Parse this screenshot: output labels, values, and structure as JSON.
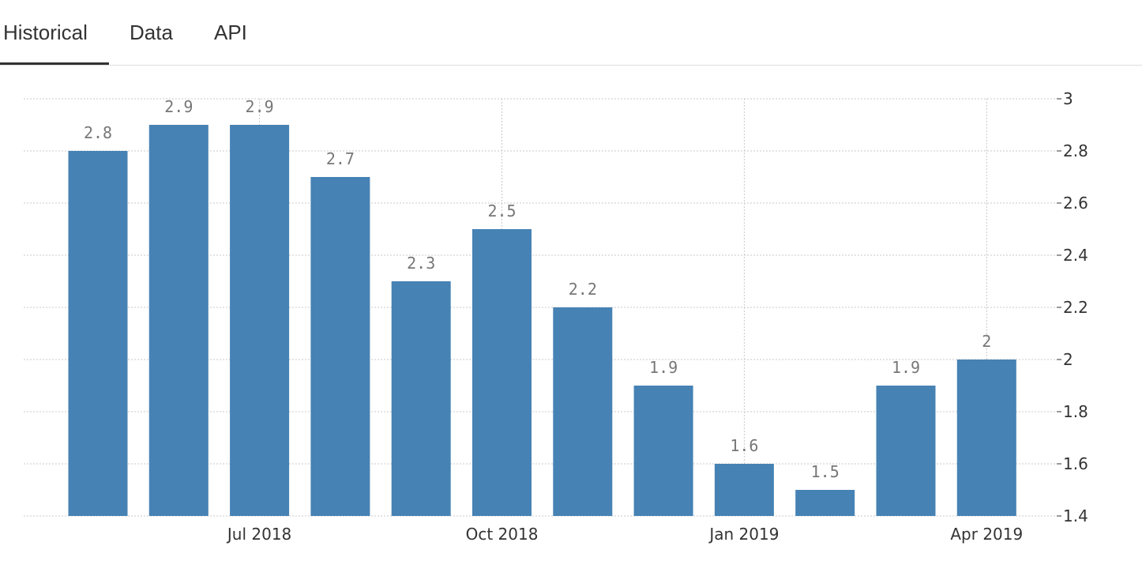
{
  "tabs": [
    {
      "label": "Historical",
      "active": true
    },
    {
      "label": "Data",
      "active": false
    },
    {
      "label": "API",
      "active": false
    }
  ],
  "colors": {
    "bar": "#4682b4",
    "grid": "#c8c8c8",
    "data_label": "#777777",
    "tick_label": "#333333"
  },
  "chart_data": {
    "type": "bar",
    "categories": [
      "2018-05",
      "2018-06",
      "2018-07",
      "2018-08",
      "2018-09",
      "2018-10",
      "2018-11",
      "2018-12",
      "2019-01",
      "2019-02",
      "2019-03",
      "2019-04"
    ],
    "values": [
      2.8,
      2.9,
      2.9,
      2.7,
      2.3,
      2.5,
      2.2,
      1.9,
      1.6,
      1.5,
      1.9,
      2.0
    ],
    "data_labels": [
      "2.8",
      "2.9",
      "2.9",
      "2.7",
      "2.3",
      "2.5",
      "2.2",
      "1.9",
      "1.6",
      "1.5",
      "1.9",
      "2"
    ],
    "x_ticks": [
      {
        "label": "Jul 2018",
        "category": "2018-07"
      },
      {
        "label": "Oct 2018",
        "category": "2018-10"
      },
      {
        "label": "Jan 2019",
        "category": "2019-01"
      },
      {
        "label": "Apr 2019",
        "category": "2019-04"
      }
    ],
    "y_ticks": [
      "1.4",
      "1.6",
      "1.8",
      "2",
      "2.2",
      "2.4",
      "2.6",
      "2.8",
      "3"
    ],
    "ylim": [
      1.4,
      3.0
    ],
    "yaxis_position": "right",
    "grid": true,
    "legend": false
  }
}
